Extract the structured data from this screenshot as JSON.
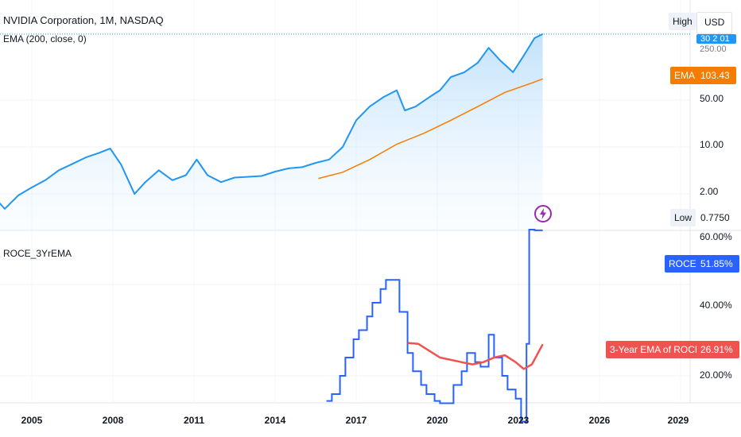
{
  "main_pane": {
    "legend_title": "NVIDIA Corporation, 1M, NASDAQ",
    "legend_ema": "EMA (200, close, 0)",
    "currency": "USD",
    "high_label": "High",
    "high_value_partial": "30 2 01",
    "price_tick_partial": "250.00",
    "ema_label": "EMA",
    "ema_value": "103.43",
    "low_label": "Low",
    "low_value": "0.7750",
    "y_ticks": [
      "50.00",
      "10.00",
      "2.00"
    ],
    "price_color": "#2196f3",
    "ema_color": "#f57c00"
  },
  "roce_pane": {
    "legend_title": "ROCE_3YrEMA",
    "top_tick": "60.00%",
    "roce_label": "ROCE",
    "roce_value": "51.85%",
    "ema_label": "3-Year EMA of ROCE",
    "ema_value": "26.91%",
    "y_ticks": [
      "40.00%",
      "20.00%"
    ],
    "roce_color": "#2962ff",
    "ema_color": "#ef5350"
  },
  "x_axis_labels": [
    "2005",
    "2008",
    "2011",
    "2014",
    "2017",
    "2020",
    "2023",
    "2026",
    "2029"
  ],
  "chart_data": [
    {
      "type": "area",
      "title": "NVIDIA Corporation, 1M, NASDAQ",
      "scale": "log",
      "x_label_years": [
        2005,
        2008,
        2011,
        2014,
        2017,
        2020,
        2023,
        2026,
        2029
      ],
      "series": [
        {
          "name": "NVIDIA Corporation",
          "x": [
            2003.0,
            2003.5,
            2004.0,
            2004.5,
            2005.0,
            2005.5,
            2006.0,
            2006.5,
            2007.0,
            2007.5,
            2007.9,
            2008.3,
            2008.8,
            2009.2,
            2009.7,
            2010.2,
            2010.7,
            2011.1,
            2011.5,
            2012.0,
            2012.5,
            2013.0,
            2013.5,
            2014.0,
            2014.5,
            2015.0,
            2015.5,
            2016.0,
            2016.5,
            2017.0,
            2017.5,
            2018.0,
            2018.5,
            2018.8,
            2019.2,
            2019.7,
            2020.1,
            2020.5,
            2021.0,
            2021.5,
            2021.9,
            2022.3,
            2022.8,
            2023.2,
            2023.6,
            2023.9
          ],
          "values": [
            1.8,
            2.0,
            1.2,
            1.9,
            2.5,
            3.2,
            4.5,
            5.6,
            7.0,
            8.2,
            9.5,
            5.5,
            2.0,
            3.0,
            4.5,
            3.2,
            3.8,
            6.5,
            3.8,
            3.0,
            3.5,
            3.6,
            3.7,
            4.3,
            4.8,
            5.0,
            5.8,
            6.5,
            10.0,
            25.0,
            40.0,
            55.0,
            70.0,
            35.0,
            40.0,
            55.0,
            70.0,
            110.0,
            130.0,
            180.0,
            300.0,
            200.0,
            130.0,
            230.0,
            420.0,
            480.0
          ]
        },
        {
          "name": "EMA",
          "x": [
            2015.6,
            2016.5,
            2017.5,
            2018.5,
            2019.5,
            2020.5,
            2021.5,
            2022.5,
            2023.5,
            2023.9
          ],
          "values": [
            3.4,
            4.2,
            6.5,
            11.0,
            16.0,
            25.0,
            40.0,
            65.0,
            90.0,
            103.43
          ]
        }
      ],
      "ylim": [
        0.5,
        600
      ]
    },
    {
      "type": "line",
      "title": "ROCE_3YrEMA",
      "ylim": [
        10,
        62
      ],
      "series": [
        {
          "name": "ROCE",
          "x": [
            2015.9,
            2016.1,
            2016.4,
            2016.6,
            2016.9,
            2017.1,
            2017.4,
            2017.6,
            2017.9,
            2018.1,
            2018.4,
            2018.6,
            2018.9,
            2019.1,
            2019.4,
            2019.6,
            2019.9,
            2020.1,
            2020.4,
            2020.6,
            2020.9,
            2021.1,
            2021.4,
            2021.6,
            2021.9,
            2022.1,
            2022.4,
            2022.6,
            2022.9,
            2023.1,
            2023.3,
            2023.4,
            2023.6,
            2023.9
          ],
          "values": [
            14.5,
            16,
            20,
            24,
            28,
            30,
            33,
            36,
            39,
            41,
            41,
            34,
            25,
            21,
            18,
            16,
            14.5,
            14,
            14,
            18,
            21,
            25,
            23,
            22,
            29,
            24,
            20,
            17,
            15,
            10,
            27,
            52,
            51.85,
            51.85
          ]
        },
        {
          "name": "3-Year EMA of ROCE",
          "x": [
            2018.9,
            2019.3,
            2019.7,
            2020.1,
            2020.5,
            2020.9,
            2021.3,
            2021.7,
            2022.1,
            2022.5,
            2022.9,
            2023.2,
            2023.5,
            2023.9
          ],
          "values": [
            27.2,
            27.0,
            25.5,
            24.0,
            23.5,
            23.0,
            22.5,
            23.0,
            24.0,
            24.5,
            23.0,
            21.5,
            22.5,
            26.91
          ]
        }
      ]
    }
  ]
}
